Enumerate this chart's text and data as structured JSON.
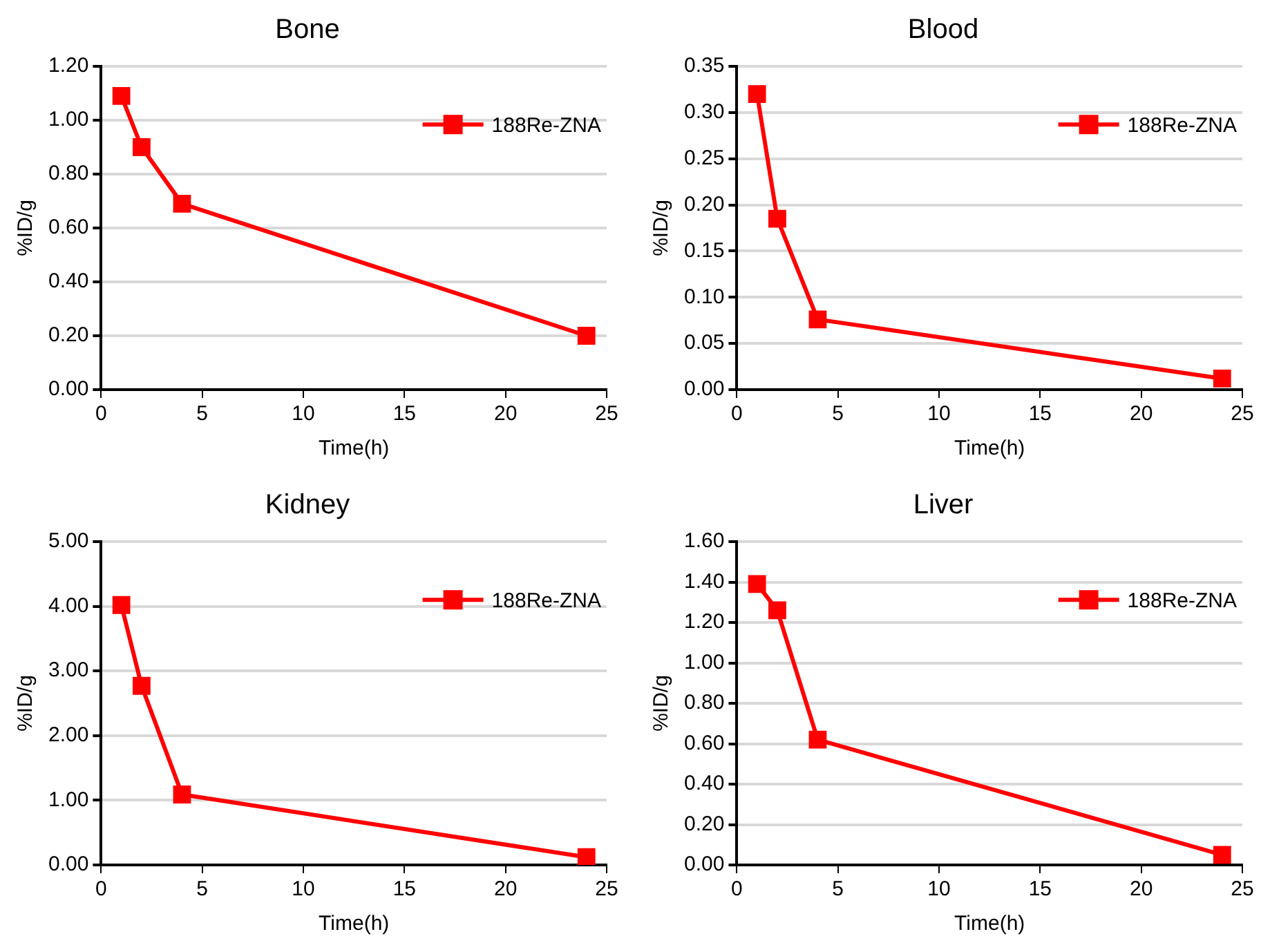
{
  "chart_data": [
    {
      "type": "line",
      "title": "Bone",
      "xlabel": "Time(h)",
      "ylabel": "%ID/g",
      "x": [
        1,
        2,
        4,
        24
      ],
      "xlim": [
        0,
        25
      ],
      "xticks": [
        0,
        5,
        10,
        15,
        20,
        25
      ],
      "ylim": [
        0,
        1.2
      ],
      "yticks": [
        {
          "value": 0,
          "label": "0.00"
        },
        {
          "value": 0.2,
          "label": "0.20"
        },
        {
          "value": 0.4,
          "label": "0.40"
        },
        {
          "value": 0.6,
          "label": "0.60"
        },
        {
          "value": 0.8,
          "label": "0.80"
        },
        {
          "value": 1,
          "label": "1.00"
        },
        {
          "value": 1.2,
          "label": "1.20"
        }
      ],
      "grid": "y",
      "legend": "top right",
      "marker": "square",
      "line_style": "solid",
      "series": [
        {
          "name": "188Re-ZNA",
          "color": "#ff0000",
          "values": [
            1.09,
            0.9,
            0.69,
            0.2
          ]
        }
      ]
    },
    {
      "type": "line",
      "title": "Blood",
      "xlabel": "Time(h)",
      "ylabel": "%ID/g",
      "x": [
        1,
        2,
        4,
        24
      ],
      "xlim": [
        0,
        25
      ],
      "xticks": [
        0,
        5,
        10,
        15,
        20,
        25
      ],
      "ylim": [
        0,
        0.35
      ],
      "yticks": [
        {
          "value": 0,
          "label": "0.00"
        },
        {
          "value": 0.05,
          "label": "0.05"
        },
        {
          "value": 0.1,
          "label": "0.10"
        },
        {
          "value": 0.15,
          "label": "0.15"
        },
        {
          "value": 0.2,
          "label": "0.20"
        },
        {
          "value": 0.25,
          "label": "0.25"
        },
        {
          "value": 0.3,
          "label": "0.30"
        },
        {
          "value": 0.35,
          "label": "0.35"
        }
      ],
      "grid": "y",
      "legend": "top right",
      "marker": "square",
      "line_style": "solid",
      "series": [
        {
          "name": "188Re-ZNA",
          "color": "#ff0000",
          "values": [
            0.32,
            0.185,
            0.076,
            0.012
          ]
        }
      ]
    },
    {
      "type": "line",
      "title": "Kidney",
      "xlabel": "Time(h)",
      "ylabel": "%ID/g",
      "x": [
        1,
        2,
        4,
        24
      ],
      "xlim": [
        0,
        25
      ],
      "xticks": [
        0,
        5,
        10,
        15,
        20,
        25
      ],
      "ylim": [
        0,
        5
      ],
      "yticks": [
        {
          "value": 0,
          "label": "0.00"
        },
        {
          "value": 1,
          "label": "1.00"
        },
        {
          "value": 2,
          "label": "2.00"
        },
        {
          "value": 3,
          "label": "3.00"
        },
        {
          "value": 4,
          "label": "4.00"
        },
        {
          "value": 5,
          "label": "5.00"
        }
      ],
      "grid": "y",
      "legend": "top right",
      "marker": "square",
      "line_style": "solid",
      "series": [
        {
          "name": "188Re-ZNA",
          "color": "#ff0000",
          "values": [
            4.02,
            2.77,
            1.09,
            0.12
          ]
        }
      ]
    },
    {
      "type": "line",
      "title": "Liver",
      "xlabel": "Time(h)",
      "ylabel": "%ID/g",
      "x": [
        1,
        2,
        4,
        24
      ],
      "xlim": [
        0,
        25
      ],
      "xticks": [
        0,
        5,
        10,
        15,
        20,
        25
      ],
      "ylim": [
        0,
        1.6
      ],
      "yticks": [
        {
          "value": 0,
          "label": "0.00"
        },
        {
          "value": 0.2,
          "label": "0.20"
        },
        {
          "value": 0.4,
          "label": "0.40"
        },
        {
          "value": 0.6,
          "label": "0.60"
        },
        {
          "value": 0.8,
          "label": "0.80"
        },
        {
          "value": 1,
          "label": "1.00"
        },
        {
          "value": 1.2,
          "label": "1.20"
        },
        {
          "value": 1.4,
          "label": "1.40"
        },
        {
          "value": 1.6,
          "label": "1.60"
        }
      ],
      "grid": "y",
      "legend": "top right",
      "marker": "square",
      "line_style": "solid",
      "series": [
        {
          "name": "188Re-ZNA",
          "color": "#ff0000",
          "values": [
            1.39,
            1.26,
            0.62,
            0.05
          ]
        }
      ]
    }
  ]
}
